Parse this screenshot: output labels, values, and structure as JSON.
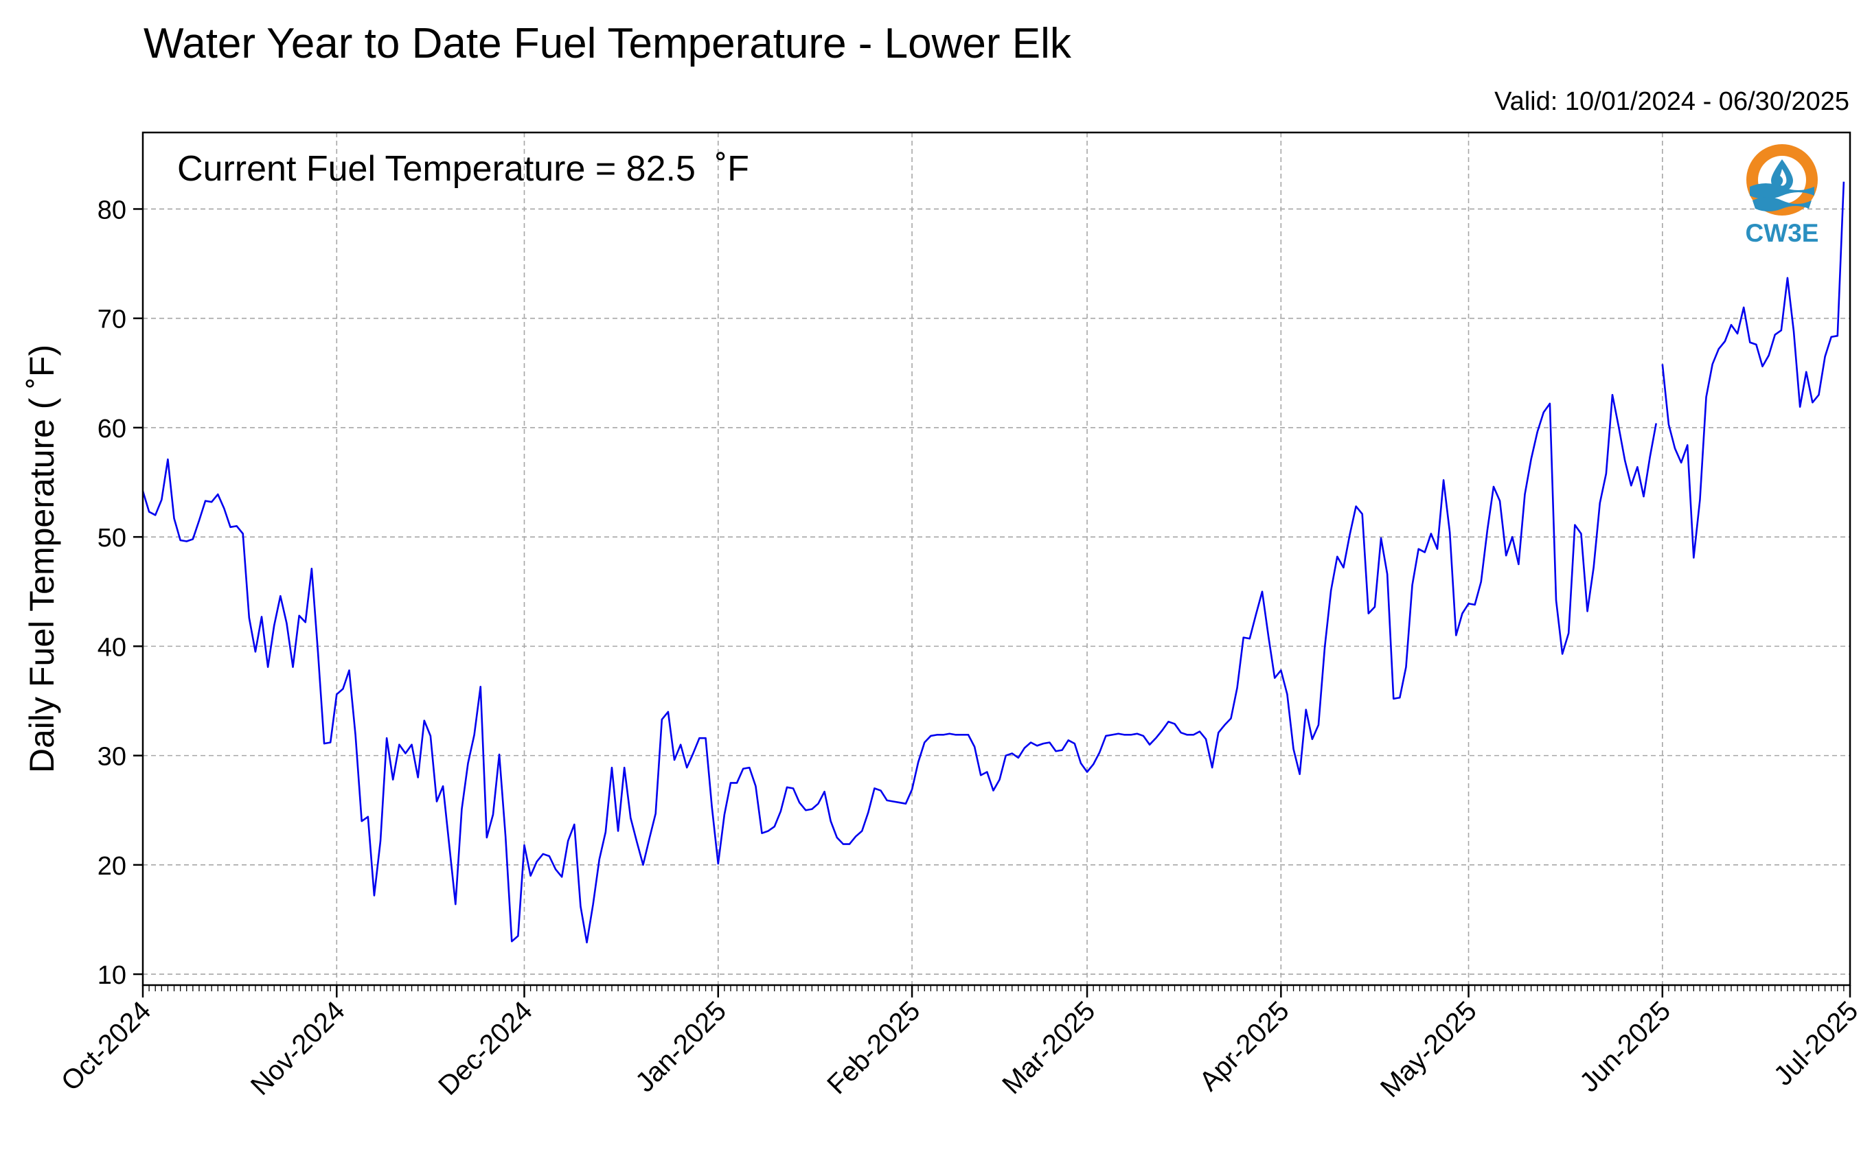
{
  "chart_data": {
    "type": "line",
    "title": "Water Year to Date Fuel Temperature - Lower Elk",
    "valid_label": "Valid: 10/01/2024 - 06/30/2025",
    "annotation": "Current Fuel Temperature = 82.5  ˚F",
    "ylabel": "Daily Fuel Temperature ( ˚F)",
    "xlabel": "",
    "ylim": [
      9,
      87
    ],
    "yticks": [
      10,
      20,
      30,
      40,
      50,
      60,
      70,
      80
    ],
    "xlim": [
      "2024-10-01",
      "2025-07-01"
    ],
    "xtick_labels": [
      {
        "label": "Oct-2024",
        "date": "2024-10-01"
      },
      {
        "label": "Nov-2024",
        "date": "2024-11-01"
      },
      {
        "label": "Dec-2024",
        "date": "2024-12-01"
      },
      {
        "label": "Jan-2025",
        "date": "2025-01-01"
      },
      {
        "label": "Feb-2025",
        "date": "2025-02-01"
      },
      {
        "label": "Mar-2025",
        "date": "2025-03-01"
      },
      {
        "label": "Apr-2025",
        "date": "2025-04-01"
      },
      {
        "label": "May-2025",
        "date": "2025-05-01"
      },
      {
        "label": "Jun-2025",
        "date": "2025-06-01"
      },
      {
        "label": "Jul-2025",
        "date": "2025-07-01"
      }
    ],
    "grid": true,
    "line_color": "#0000ee",
    "series": [
      {
        "segments": [
          {
            "x": [
              "2024-10-01",
              "2024-10-02",
              "2024-10-03",
              "2024-10-04",
              "2024-10-05",
              "2024-10-06",
              "2024-10-07",
              "2024-10-08",
              "2024-10-09",
              "2024-10-10",
              "2024-10-11",
              "2024-10-12",
              "2024-10-13",
              "2024-10-14",
              "2024-10-15",
              "2024-10-16",
              "2024-10-17",
              "2024-10-18",
              "2024-10-19",
              "2024-10-20",
              "2024-10-21",
              "2024-10-22",
              "2024-10-23",
              "2024-10-24",
              "2024-10-25",
              "2024-10-26",
              "2024-10-27",
              "2024-10-28",
              "2024-10-29",
              "2024-10-30",
              "2024-10-31",
              "2024-11-01",
              "2024-11-02",
              "2024-11-03",
              "2024-11-04",
              "2024-11-05",
              "2024-11-06",
              "2024-11-07",
              "2024-11-08",
              "2024-11-09",
              "2024-11-10",
              "2024-11-11",
              "2024-11-12",
              "2024-11-13",
              "2024-11-14",
              "2024-11-15",
              "2024-11-16",
              "2024-11-17",
              "2024-11-18",
              "2024-11-19",
              "2024-11-20",
              "2024-11-21",
              "2024-11-22",
              "2024-11-23",
              "2024-11-24",
              "2024-11-25",
              "2024-11-26",
              "2024-11-27",
              "2024-11-28",
              "2024-11-29",
              "2024-11-30",
              "2024-12-01",
              "2024-12-02",
              "2024-12-03",
              "2024-12-04",
              "2024-12-05",
              "2024-12-06",
              "2024-12-07",
              "2024-12-08",
              "2024-12-09",
              "2024-12-10",
              "2024-12-11",
              "2024-12-12",
              "2024-12-13",
              "2024-12-14",
              "2024-12-15",
              "2024-12-16",
              "2024-12-17",
              "2024-12-18",
              "2024-12-19",
              "2024-12-20",
              "2024-12-21",
              "2024-12-22",
              "2024-12-23",
              "2024-12-24",
              "2024-12-25",
              "2024-12-26",
              "2024-12-27",
              "2024-12-28",
              "2024-12-29",
              "2024-12-30",
              "2024-12-31",
              "2025-01-01",
              "2025-01-02",
              "2025-01-03",
              "2025-01-04",
              "2025-01-05",
              "2025-01-06",
              "2025-01-07",
              "2025-01-08",
              "2025-01-09",
              "2025-01-10",
              "2025-01-11",
              "2025-01-12",
              "2025-01-13",
              "2025-01-14",
              "2025-01-15",
              "2025-01-16",
              "2025-01-17",
              "2025-01-18",
              "2025-01-19",
              "2025-01-20",
              "2025-01-21",
              "2025-01-22",
              "2025-01-23",
              "2025-01-24",
              "2025-01-25",
              "2025-01-26",
              "2025-01-27",
              "2025-01-28",
              "2025-01-29",
              "2025-01-30",
              "2025-01-31",
              "2025-02-01",
              "2025-02-02",
              "2025-02-03",
              "2025-02-04",
              "2025-02-05",
              "2025-02-06",
              "2025-02-07",
              "2025-02-08",
              "2025-02-09",
              "2025-02-10",
              "2025-02-11",
              "2025-02-12",
              "2025-02-13",
              "2025-02-14",
              "2025-02-15",
              "2025-02-16",
              "2025-02-17",
              "2025-02-18",
              "2025-02-19",
              "2025-02-20",
              "2025-02-21",
              "2025-02-22",
              "2025-02-23",
              "2025-02-24",
              "2025-02-25",
              "2025-02-26",
              "2025-02-27",
              "2025-02-28",
              "2025-03-01",
              "2025-03-02",
              "2025-03-03",
              "2025-03-04",
              "2025-03-05",
              "2025-03-06",
              "2025-03-07",
              "2025-03-08",
              "2025-03-09",
              "2025-03-10",
              "2025-03-11",
              "2025-03-12",
              "2025-03-13",
              "2025-03-14",
              "2025-03-15",
              "2025-03-16",
              "2025-03-17",
              "2025-03-18",
              "2025-03-19",
              "2025-03-20",
              "2025-03-21",
              "2025-03-22",
              "2025-03-23",
              "2025-03-24",
              "2025-03-25",
              "2025-03-26",
              "2025-03-27",
              "2025-03-28",
              "2025-03-29",
              "2025-03-30",
              "2025-03-31",
              "2025-04-01",
              "2025-04-02",
              "2025-04-03",
              "2025-04-04",
              "2025-04-05",
              "2025-04-06",
              "2025-04-07",
              "2025-04-08",
              "2025-04-09",
              "2025-04-10",
              "2025-04-11",
              "2025-04-12",
              "2025-04-13",
              "2025-04-14",
              "2025-04-15",
              "2025-04-16",
              "2025-04-17",
              "2025-04-18",
              "2025-04-19",
              "2025-04-20",
              "2025-04-21",
              "2025-04-22",
              "2025-04-23",
              "2025-04-24",
              "2025-04-25",
              "2025-04-26",
              "2025-04-27",
              "2025-04-28",
              "2025-04-29",
              "2025-04-30",
              "2025-05-01",
              "2025-05-02",
              "2025-05-03",
              "2025-05-04",
              "2025-05-05",
              "2025-05-06",
              "2025-05-07",
              "2025-05-08",
              "2025-05-09",
              "2025-05-10",
              "2025-05-11",
              "2025-05-12",
              "2025-05-13",
              "2025-05-14",
              "2025-05-15",
              "2025-05-16",
              "2025-05-17",
              "2025-05-18",
              "2025-05-19",
              "2025-05-20",
              "2025-05-21",
              "2025-05-22",
              "2025-05-23",
              "2025-05-24",
              "2025-05-25",
              "2025-05-26",
              "2025-05-27",
              "2025-05-28",
              "2025-05-29",
              "2025-05-30",
              "2025-05-31"
            ],
            "y": [
              54.2,
              52.3,
              52.0,
              53.4,
              57.1,
              51.7,
              49.7,
              49.6,
              49.8,
              51.5,
              53.3,
              53.2,
              53.9,
              52.6,
              50.9,
              51.0,
              50.3,
              42.6,
              39.5,
              42.7,
              38.1,
              41.9,
              44.6,
              42.1,
              38.1,
              42.8,
              42.2,
              47.1,
              39.5,
              31.1,
              31.2,
              35.6,
              36.1,
              37.8,
              31.9,
              24.0,
              24.4,
              17.2,
              22.2,
              31.6,
              27.8,
              31.0,
              30.2,
              31.0,
              28.0,
              33.2,
              31.8,
              25.8,
              27.2,
              21.8,
              16.4,
              25.1,
              29.3,
              31.9,
              36.3,
              22.5,
              24.6,
              30.1,
              22.6,
              13.0,
              13.5,
              21.8,
              19.0,
              20.3,
              21.0,
              20.8,
              19.6,
              18.9,
              22.2,
              23.7,
              16.2,
              12.9,
              16.4,
              20.5,
              23.0,
              28.9,
              23.1,
              28.9,
              24.3,
              22.1,
              20.0,
              22.4,
              24.7,
              33.3,
              34.0,
              29.6,
              31.0,
              28.9,
              30.2,
              31.6,
              31.6,
              25.3,
              20.1,
              24.6,
              27.5,
              27.5,
              28.8,
              28.9,
              27.2,
              22.9,
              23.1,
              23.5,
              24.9,
              27.1,
              27.0,
              25.7,
              25.0,
              25.1,
              25.6,
              26.7,
              24.0,
              22.5,
              21.9,
              21.9,
              22.6,
              23.1,
              24.8,
              27.0,
              26.8,
              25.9,
              25.8,
              25.7,
              25.6,
              26.9,
              29.4,
              31.2,
              31.8,
              31.9,
              31.9,
              32.0,
              31.9,
              31.9,
              31.9,
              30.8,
              28.2,
              28.5,
              26.8,
              27.8,
              30.0,
              30.2,
              29.8,
              30.7,
              31.2,
              30.9,
              31.1,
              31.2,
              30.4,
              30.5,
              31.4,
              31.1,
              29.3,
              28.5,
              29.2,
              30.3,
              31.8,
              31.9,
              32.0,
              31.9,
              31.9,
              32.0,
              31.8,
              31.0,
              31.6,
              32.3,
              33.1,
              32.9,
              32.1,
              31.9,
              31.9,
              32.2,
              31.5,
              28.9,
              32.1,
              32.8,
              33.4,
              36.2,
              40.8,
              40.7,
              42.9,
              45.0,
              40.9,
              37.1,
              37.8,
              35.6,
              30.6,
              28.3,
              34.2,
              31.5,
              32.8,
              39.9,
              45.1,
              48.2,
              47.2,
              50.2,
              52.8,
              52.1,
              43.0,
              43.6,
              49.9,
              46.6,
              35.2,
              35.3,
              38.1,
              45.6,
              48.9,
              48.6,
              50.3,
              48.9,
              55.2,
              50.4,
              41.0,
              43.0,
              43.9,
              43.8,
              45.9,
              50.6,
              54.6,
              53.3,
              48.3,
              50.0,
              47.5,
              53.9,
              57.1,
              59.6,
              61.4,
              62.2,
              44.2,
              39.3,
              41.2,
              51.1,
              50.3,
              43.2,
              47.2,
              53.1,
              55.8,
              63.0,
              60.1,
              57.0,
              54.7,
              56.4,
              53.7,
              57.3,
              60.4
            ]
          },
          {
            "x": [
              "2025-06-01",
              "2025-06-02",
              "2025-06-03",
              "2025-06-04",
              "2025-06-05",
              "2025-06-06",
              "2025-06-07",
              "2025-06-08",
              "2025-06-09",
              "2025-06-10",
              "2025-06-11",
              "2025-06-12",
              "2025-06-13",
              "2025-06-14",
              "2025-06-15",
              "2025-06-16",
              "2025-06-17",
              "2025-06-18",
              "2025-06-19",
              "2025-06-20",
              "2025-06-21",
              "2025-06-22",
              "2025-06-23",
              "2025-06-24",
              "2025-06-25",
              "2025-06-26",
              "2025-06-27",
              "2025-06-28",
              "2025-06-29",
              "2025-06-30"
            ],
            "y": [
              65.8,
              60.3,
              58.1,
              56.8,
              58.4,
              48.1,
              53.4,
              62.8,
              65.8,
              67.2,
              67.9,
              69.4,
              68.6,
              71.0,
              67.8,
              67.6,
              65.6,
              66.6,
              68.5,
              68.9,
              73.7,
              68.8,
              61.9,
              65.1,
              62.3,
              63.0,
              66.5,
              68.3,
              68.4,
              82.5
            ]
          }
        ]
      }
    ],
    "logo_text": "CW3E"
  }
}
